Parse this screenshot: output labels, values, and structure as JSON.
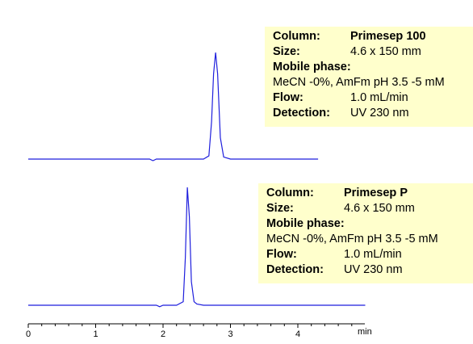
{
  "chart_data": [
    {
      "type": "line",
      "title": "",
      "xlabel": "",
      "ylabel": "",
      "xlim": [
        0,
        5
      ],
      "ylim": [
        0,
        1
      ],
      "series": [
        {
          "x": [
            0,
            1.0,
            1.8,
            1.85,
            1.9,
            2.6,
            2.68,
            2.72,
            2.75,
            2.78,
            2.81,
            2.85,
            2.9,
            3.0,
            4.3
          ],
          "y": [
            0,
            0,
            0,
            -0.015,
            0,
            0,
            0.03,
            0.35,
            0.8,
            1.0,
            0.8,
            0.2,
            0.02,
            0,
            0
          ]
        }
      ],
      "color": "#1f1fdd",
      "info": {
        "column_label": "Column:",
        "column_value": "Primesep 100",
        "size_label": "Size:",
        "size_value": "4.6 x 150 mm",
        "mobile_label": "Mobile phase:",
        "mobile_value": "MeCN -0%, AmFm pH 3.5 -5 mM",
        "flow_label": "Flow:",
        "flow_value": "1.0 mL/min",
        "detection_label": "Detection:",
        "detection_value": "UV 230 nm"
      }
    },
    {
      "type": "line",
      "title": "",
      "xlabel": "min",
      "ylabel": "",
      "xlim": [
        0,
        5
      ],
      "ylim": [
        0,
        1
      ],
      "xticks": [
        "0",
        "1",
        "2",
        "3",
        "4"
      ],
      "series": [
        {
          "x": [
            0,
            1.0,
            1.9,
            1.95,
            2.0,
            2.2,
            2.3,
            2.33,
            2.36,
            2.39,
            2.42,
            2.46,
            2.5,
            2.6,
            5.0
          ],
          "y": [
            0,
            0,
            0,
            -0.012,
            0,
            0,
            0.03,
            0.4,
            1.0,
            0.75,
            0.2,
            0.03,
            0.01,
            0,
            0
          ]
        }
      ],
      "color": "#1f1fdd",
      "info": {
        "column_label": "Column:",
        "column_value": "Primesep P",
        "size_label": "Size:",
        "size_value": "4.6 x 150 mm",
        "mobile_label": "Mobile phase:",
        "mobile_value": "MeCN -0%, AmFm pH 3.5 -5 mM",
        "flow_label": "Flow:",
        "flow_value": "1.0 mL/min",
        "detection_label": "Detection:",
        "detection_value": "UV 230 nm"
      }
    }
  ]
}
